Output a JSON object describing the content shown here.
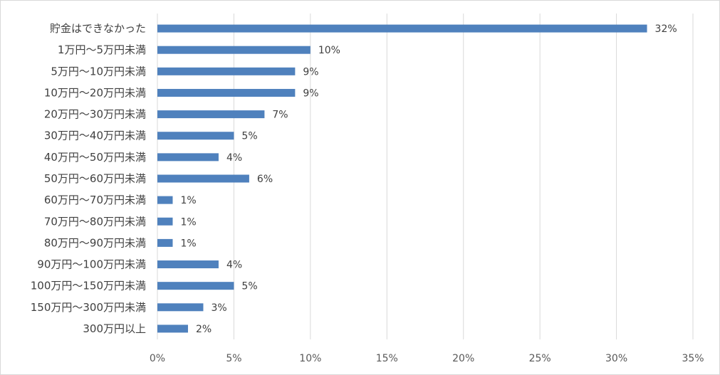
{
  "chart_data": {
    "type": "bar",
    "orientation": "horizontal",
    "categories": [
      "貯金はできなかった",
      "1万円〜5万円未満",
      "5万円〜10万円未満",
      "10万円〜20万円未満",
      "20万円〜30万円未満",
      "30万円〜40万円未満",
      "40万円〜50万円未満",
      "50万円〜60万円未満",
      "60万円〜70万円未満",
      "70万円〜80万円未満",
      "80万円〜90万円未満",
      "90万円〜100万円未満",
      "100万円〜150万円未満",
      "150万円〜300万円未満",
      "300万円以上"
    ],
    "values": [
      32,
      10,
      9,
      9,
      7,
      5,
      4,
      6,
      1,
      1,
      1,
      4,
      5,
      3,
      2
    ],
    "value_labels": [
      "32%",
      "10%",
      "9%",
      "9%",
      "7%",
      "5%",
      "4%",
      "6%",
      "1%",
      "1%",
      "1%",
      "4%",
      "5%",
      "3%",
      "2%"
    ],
    "x_ticks": [
      0,
      5,
      10,
      15,
      20,
      25,
      30,
      35
    ],
    "x_tick_labels": [
      "0%",
      "5%",
      "10%",
      "15%",
      "20%",
      "25%",
      "30%",
      "35%"
    ],
    "xlim": [
      0,
      35
    ],
    "grid": true,
    "title": "",
    "xlabel": "",
    "ylabel": "",
    "colors": {
      "bar": "#4f81bd",
      "grid": "#d9d9d9",
      "text": "#404040"
    }
  }
}
